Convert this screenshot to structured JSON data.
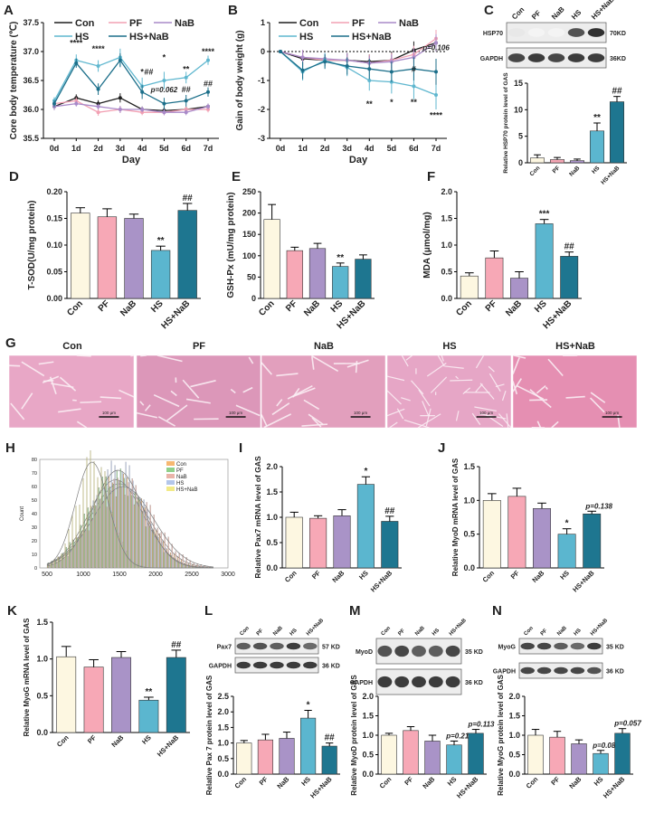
{
  "legend": {
    "con": "Con",
    "pf": "PF",
    "nab": "NaB",
    "hs": "HS",
    "hsnab": "HS+NaB"
  },
  "colors": {
    "con": "#1f1f1f",
    "pf": "#f2a0b3",
    "nab": "#a98ac9",
    "hs": "#5fb7cf",
    "hsnab": "#1c6f8a",
    "bar_con": "#fdf7e1",
    "bar_pf": "#f7a8b6",
    "bar_nab": "#a993c7",
    "bar_hs": "#5bb6cf",
    "bar_hsnab": "#1e7690",
    "hist_con": "#f6b871",
    "hist_pf": "#8fd08a",
    "hist_nab": "#e9b4a9",
    "hist_hs": "#b3c6ea",
    "hist_hsnab": "#f2ea88"
  },
  "categories": [
    "Con",
    "PF",
    "NaB",
    "HS",
    "HS+NaB"
  ],
  "panels": {
    "A": "A",
    "B": "B",
    "C": "C",
    "D": "D",
    "E": "E",
    "F": "F",
    "G": "G",
    "H": "H",
    "I": "I",
    "J": "J",
    "K": "K",
    "L": "L",
    "M": "M",
    "N": "N"
  },
  "gel": {
    "C": {
      "rows": [
        "HSP70",
        "GAPDH"
      ],
      "kd": [
        "70KD",
        "36KD"
      ],
      "intensity": [
        [
          0.1,
          0.05,
          0.05,
          0.75,
          0.9
        ],
        [
          0.8,
          0.85,
          0.8,
          0.85,
          0.85
        ]
      ]
    },
    "L": {
      "rows": [
        "Pax7",
        "GAPDH"
      ],
      "kd": [
        "57 KD",
        "36 KD"
      ],
      "intensity": [
        [
          0.7,
          0.75,
          0.7,
          0.85,
          0.65
        ],
        [
          0.85,
          0.85,
          0.85,
          0.85,
          0.85
        ]
      ]
    },
    "M": {
      "rows": [
        "MyoD",
        "GAPDH"
      ],
      "kd": [
        "35 KD",
        "36 KD"
      ],
      "intensity": [
        [
          0.75,
          0.8,
          0.7,
          0.7,
          0.8
        ],
        [
          0.85,
          0.85,
          0.85,
          0.85,
          0.85
        ]
      ]
    },
    "N": {
      "rows": [
        "MyoG",
        "GAPDH"
      ],
      "kd": [
        "35 KD",
        "36 KD"
      ],
      "intensity": [
        [
          0.8,
          0.8,
          0.7,
          0.65,
          0.85
        ],
        [
          0.8,
          0.8,
          0.8,
          0.8,
          0.75
        ]
      ]
    }
  },
  "histology": {
    "scale_label": "100 μm",
    "tints": [
      "#e8a7c6",
      "#dc97b9",
      "#e29fbd",
      "#e6a6c6",
      "#e58fb2"
    ]
  },
  "chart_data": [
    {
      "id": "A",
      "type": "line",
      "xlabel": "Day",
      "ylabel": "Core body temperature (℃)",
      "x": [
        "0d",
        "1d",
        "2d",
        "3d",
        "4d",
        "5d",
        "6d",
        "7d"
      ],
      "ylim": [
        35.5,
        37.5
      ],
      "yticks": [
        35.5,
        36.0,
        36.5,
        37.0,
        37.5
      ],
      "series": [
        {
          "key": "con",
          "values": [
            36.05,
            36.2,
            36.1,
            36.2,
            36.0,
            35.98,
            36.0,
            36.05
          ],
          "err": [
            0.06,
            0.06,
            0.06,
            0.08,
            0.05,
            0.06,
            0.05,
            0.05
          ]
        },
        {
          "key": "pf",
          "values": [
            36.1,
            36.15,
            35.95,
            36.0,
            35.95,
            35.95,
            36.0,
            36.0
          ],
          "err": [
            0.06,
            0.06,
            0.06,
            0.06,
            0.05,
            0.05,
            0.05,
            0.05
          ]
        },
        {
          "key": "nab",
          "values": [
            36.05,
            36.1,
            36.05,
            36.0,
            36.0,
            35.95,
            35.95,
            36.05
          ],
          "err": [
            0.06,
            0.05,
            0.05,
            0.06,
            0.05,
            0.05,
            0.05,
            0.05
          ]
        },
        {
          "key": "hs",
          "values": [
            36.15,
            36.85,
            36.75,
            36.9,
            36.4,
            36.5,
            36.55,
            36.85
          ],
          "err": [
            0.06,
            0.1,
            0.1,
            0.15,
            0.15,
            0.15,
            0.1,
            0.08
          ]
        },
        {
          "key": "hsnab",
          "values": [
            36.1,
            36.8,
            36.35,
            36.85,
            36.3,
            36.1,
            36.15,
            36.3
          ],
          "err": [
            0.06,
            0.08,
            0.1,
            0.12,
            0.12,
            0.1,
            0.1,
            0.08
          ]
        }
      ],
      "annotations": [
        "****",
        "****",
        "*",
        "*",
        "##",
        "p=0.062",
        "##",
        "**",
        "****",
        "##"
      ]
    },
    {
      "id": "B",
      "type": "line",
      "xlabel": "Day",
      "ylabel": "Gain of body weight (g)",
      "x": [
        "0d",
        "1d",
        "2d",
        "3d",
        "4d",
        "5d",
        "6d",
        "7d"
      ],
      "ylim": [
        -3,
        1
      ],
      "yticks": [
        -3,
        -2,
        -1,
        0,
        1
      ],
      "series": [
        {
          "key": "con",
          "values": [
            0,
            -0.25,
            -0.3,
            -0.3,
            -0.35,
            -0.3,
            0.05,
            0.3
          ],
          "err": [
            0.05,
            0.3,
            0.2,
            0.25,
            0.25,
            0.3,
            0.3,
            0.3
          ]
        },
        {
          "key": "pf",
          "values": [
            0,
            -0.2,
            -0.3,
            -0.3,
            -0.4,
            -0.3,
            -0.1,
            0.45
          ],
          "err": [
            0.05,
            0.25,
            0.2,
            0.2,
            0.3,
            0.25,
            0.3,
            0.3
          ]
        },
        {
          "key": "nab",
          "values": [
            0,
            -0.2,
            -0.25,
            -0.3,
            -0.4,
            -0.35,
            -0.2,
            0.3
          ],
          "err": [
            0.05,
            0.25,
            0.2,
            0.25,
            0.25,
            0.25,
            0.3,
            0.3
          ]
        },
        {
          "key": "hs",
          "values": [
            0,
            -0.7,
            -0.3,
            -0.55,
            -1.0,
            -1.05,
            -1.2,
            -1.5
          ],
          "err": [
            0.05,
            0.3,
            0.25,
            0.3,
            0.35,
            0.4,
            0.45,
            0.5
          ]
        },
        {
          "key": "hsnab",
          "values": [
            0,
            -0.65,
            -0.35,
            -0.5,
            -0.6,
            -0.7,
            -0.6,
            -0.7
          ],
          "err": [
            0.05,
            0.3,
            0.25,
            0.3,
            0.35,
            0.35,
            0.4,
            0.45
          ]
        }
      ],
      "annotations": [
        "**",
        "*",
        "**",
        "****",
        "#",
        "p=0.106"
      ]
    },
    {
      "id": "C",
      "type": "bar",
      "ylabel": "Relative HSP70 protein level of GAS",
      "ylim": [
        0,
        15
      ],
      "yticks": [
        0,
        5,
        10,
        15
      ],
      "values": [
        0.9,
        0.6,
        0.4,
        6.0,
        11.5
      ],
      "err": [
        0.6,
        0.4,
        0.3,
        1.5,
        1.0
      ],
      "annotations": [
        "",
        "",
        "",
        "**",
        "##"
      ]
    },
    {
      "id": "D",
      "type": "bar",
      "ylabel": "T-SOD(U/mg protein)",
      "ylim": [
        0,
        0.2
      ],
      "yticks": [
        0.0,
        0.05,
        0.1,
        0.15,
        0.2
      ],
      "values": [
        0.16,
        0.153,
        0.15,
        0.09,
        0.165
      ],
      "err": [
        0.01,
        0.015,
        0.008,
        0.008,
        0.013
      ],
      "annotations": [
        "",
        "",
        "",
        "**",
        "##"
      ]
    },
    {
      "id": "E",
      "type": "bar",
      "ylabel": "GSH-Px (mU/mg protein)",
      "ylim": [
        0,
        250
      ],
      "yticks": [
        0,
        50,
        100,
        150,
        200,
        250
      ],
      "values": [
        185,
        112,
        117,
        75,
        92
      ],
      "err": [
        35,
        8,
        12,
        8,
        10
      ],
      "annotations": [
        "",
        "",
        "",
        "**",
        ""
      ]
    },
    {
      "id": "F",
      "type": "bar",
      "ylabel": "MDA (μmol/mg)",
      "ylim": [
        0,
        2.0
      ],
      "yticks": [
        0.0,
        0.5,
        1.0,
        1.5,
        2.0
      ],
      "values": [
        0.42,
        0.76,
        0.38,
        1.4,
        0.79
      ],
      "err": [
        0.06,
        0.13,
        0.12,
        0.08,
        0.08
      ],
      "annotations": [
        "",
        "",
        "",
        "***",
        "##"
      ]
    },
    {
      "id": "H",
      "type": "histogram",
      "ylabel": "Count",
      "xlim": [
        400,
        3000
      ],
      "xticks": [
        500,
        1000,
        1500,
        2000,
        2500,
        3000
      ],
      "ylim": [
        0,
        80
      ],
      "yticks": [
        0,
        10,
        20,
        30,
        40,
        50,
        60,
        70,
        80
      ],
      "series": [
        {
          "key": "con",
          "mean": 1500,
          "sd": 400,
          "peak": 62
        },
        {
          "key": "pf",
          "mean": 1450,
          "sd": 380,
          "peak": 65
        },
        {
          "key": "nab",
          "mean": 1550,
          "sd": 420,
          "peak": 60
        },
        {
          "key": "hs",
          "mean": 1480,
          "sd": 350,
          "peak": 72
        },
        {
          "key": "hsnab",
          "mean": 1120,
          "sd": 230,
          "peak": 78
        }
      ]
    },
    {
      "id": "I",
      "type": "bar",
      "ylabel": "Relative Pax7 mRNA level of GAS",
      "ylim": [
        0,
        2.0
      ],
      "yticks": [
        0.0,
        0.5,
        1.0,
        1.5,
        2.0
      ],
      "values": [
        1.0,
        0.98,
        1.03,
        1.65,
        0.92
      ],
      "err": [
        0.1,
        0.05,
        0.12,
        0.15,
        0.1
      ],
      "annotations": [
        "",
        "",
        "",
        "*",
        "##"
      ]
    },
    {
      "id": "J",
      "type": "bar",
      "ylabel": "Relative MyoD mRNA level of GAS",
      "ylim": [
        0,
        1.5
      ],
      "yticks": [
        0.0,
        0.5,
        1.0,
        1.5
      ],
      "values": [
        1.0,
        1.06,
        0.88,
        0.5,
        0.8
      ],
      "err": [
        0.1,
        0.12,
        0.08,
        0.08,
        0.04
      ],
      "annotations": [
        "",
        "",
        "",
        "*",
        "p=0.138"
      ]
    },
    {
      "id": "K",
      "type": "bar",
      "ylabel": "Relative MyoG mRNA level of GAS",
      "ylim": [
        0,
        1.5
      ],
      "yticks": [
        0.0,
        0.5,
        1.0,
        1.5
      ],
      "values": [
        1.03,
        0.89,
        1.02,
        0.44,
        1.02
      ],
      "err": [
        0.14,
        0.1,
        0.08,
        0.04,
        0.1
      ],
      "annotations": [
        "",
        "",
        "",
        "**",
        "##"
      ]
    },
    {
      "id": "L",
      "type": "bar",
      "ylabel": "Relative Pax 7 protein level of GAS",
      "ylim": [
        0,
        2.5
      ],
      "yticks": [
        0.0,
        0.5,
        1.0,
        1.5,
        2.0,
        2.5
      ],
      "values": [
        1.0,
        1.1,
        1.15,
        1.8,
        0.9
      ],
      "err": [
        0.08,
        0.18,
        0.2,
        0.25,
        0.1
      ],
      "annotations": [
        "",
        "",
        "",
        "*",
        "##"
      ]
    },
    {
      "id": "M",
      "type": "bar",
      "ylabel": "Relative MyoD protein level of GAS",
      "ylim": [
        0,
        2.0
      ],
      "yticks": [
        0.0,
        0.5,
        1.0,
        1.5,
        2.0
      ],
      "values": [
        1.0,
        1.12,
        0.85,
        0.75,
        1.05
      ],
      "err": [
        0.05,
        0.1,
        0.15,
        0.1,
        0.1
      ],
      "annotations": [
        "",
        "",
        "",
        "p=0.212",
        "p=0.113"
      ]
    },
    {
      "id": "N",
      "type": "bar",
      "ylabel": "Relative MyoG protein level of GAS",
      "ylim": [
        0,
        2.0
      ],
      "yticks": [
        0.0,
        0.5,
        1.0,
        1.5,
        2.0
      ],
      "values": [
        1.0,
        0.95,
        0.78,
        0.53,
        1.05
      ],
      "err": [
        0.15,
        0.15,
        0.1,
        0.08,
        0.12
      ],
      "annotations": [
        "",
        "",
        "",
        "p=0.080",
        "p=0.057"
      ]
    }
  ]
}
